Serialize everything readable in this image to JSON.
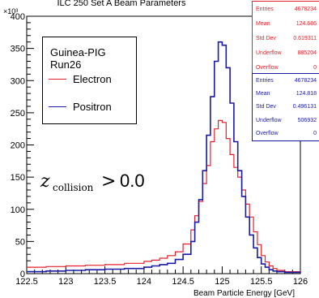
{
  "chart_data": {
    "type": "line",
    "title": "ILC 250 Set A Beam Parameters",
    "xlabel": "Beam Particle Energy [GeV]",
    "ylabel": "",
    "y_exponent_label": "×10³",
    "xlim": [
      122.5,
      126
    ],
    "ylim": [
      0,
      400
    ],
    "x_ticks": [
      "122.5",
      "123",
      "123.5",
      "124",
      "124.5",
      "125",
      "125.5",
      "126"
    ],
    "y_ticks": [
      "0",
      "50",
      "100",
      "150",
      "200",
      "250",
      "300",
      "350",
      "400"
    ],
    "annotation": "z_collision > 0.0",
    "legend": {
      "title": "Guinea-PIG Run26",
      "entries": [
        {
          "label": "Electron",
          "color": "#e8202a"
        },
        {
          "label": "Positron",
          "color": "#1a1aa8"
        }
      ]
    },
    "x": [
      122.5,
      122.75,
      123.0,
      123.25,
      123.5,
      123.75,
      124.0,
      124.1,
      124.2,
      124.3,
      124.4,
      124.5,
      124.6,
      124.65,
      124.7,
      124.75,
      124.8,
      124.85,
      124.9,
      124.95,
      125.0,
      125.05,
      125.1,
      125.15,
      125.2,
      125.25,
      125.3,
      125.35,
      125.4,
      125.45,
      125.5,
      125.55,
      125.6,
      125.65,
      125.7,
      125.8,
      126.0
    ],
    "series": [
      {
        "name": "Electron",
        "color": "#e8202a",
        "values": [
          10,
          11,
          12,
          13,
          14,
          16,
          19,
          21,
          24,
          28,
          34,
          46,
          68,
          90,
          112,
          140,
          168,
          205,
          225,
          238,
          235,
          210,
          185,
          165,
          150,
          130,
          108,
          88,
          65,
          45,
          28,
          18,
          12,
          8,
          5,
          3,
          2
        ]
      },
      {
        "name": "Positron",
        "color": "#1a1aa8",
        "values": [
          3,
          4,
          5,
          6,
          7,
          8,
          10,
          12,
          14,
          16,
          22,
          30,
          50,
          80,
          115,
          160,
          215,
          275,
          330,
          360,
          355,
          320,
          265,
          205,
          160,
          120,
          88,
          60,
          40,
          25,
          15,
          10,
          6,
          4,
          3,
          2,
          1
        ]
      }
    ]
  },
  "stats_electron": {
    "Entries": "4678234",
    "Mean": "124.686",
    "Std Dev": "0.619311",
    "Underflow": "885204",
    "Overflow": "0"
  },
  "stats_positron": {
    "Entries": "4678234",
    "Mean": "124.818",
    "Std Dev": "0.496131",
    "Underflow": "506932",
    "Overflow": "0"
  },
  "stat_labels": [
    "Entries",
    "Mean",
    "Std Dev",
    "Underflow",
    "Overflow"
  ]
}
